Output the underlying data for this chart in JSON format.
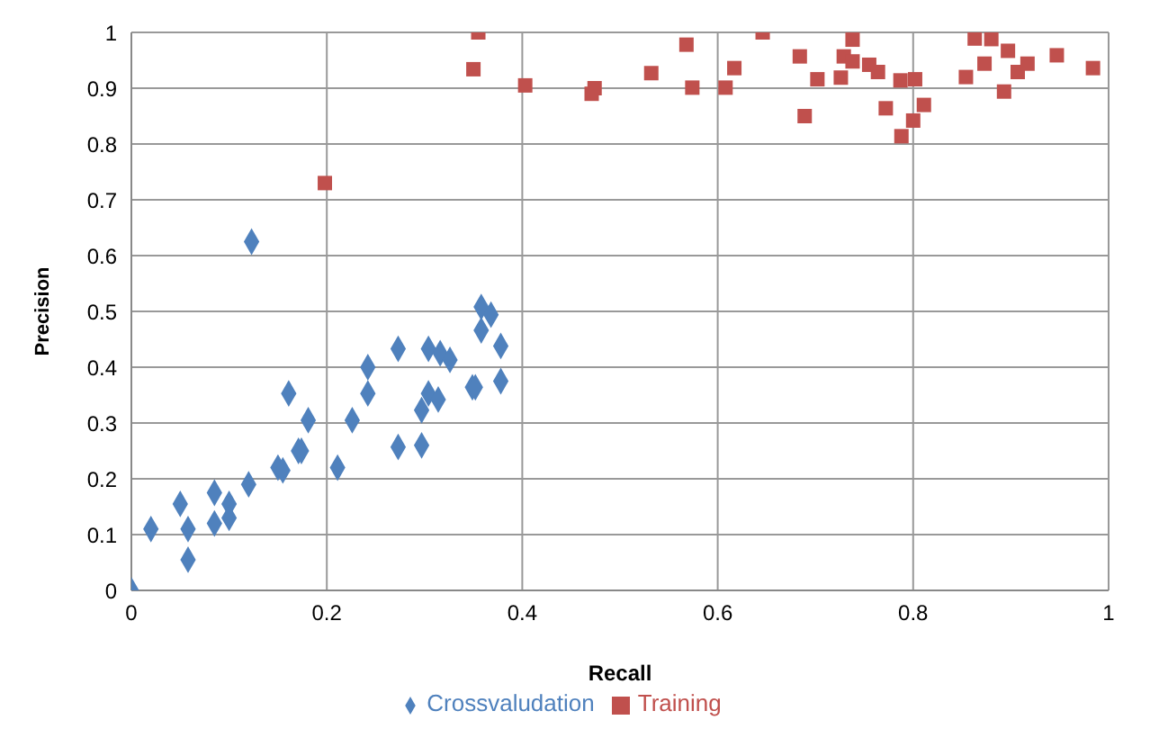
{
  "chart_data": {
    "type": "scatter",
    "xlabel": "Recall",
    "ylabel": "Precision",
    "xlim": [
      0,
      1
    ],
    "ylim": [
      0,
      1
    ],
    "xticks": [
      0,
      0.2,
      0.4,
      0.6,
      0.8,
      1
    ],
    "yticks": [
      0,
      0.1,
      0.2,
      0.3,
      0.4,
      0.5,
      0.6,
      0.7,
      0.8,
      0.9,
      1
    ],
    "grid": true,
    "legend": "bottom",
    "series": [
      {
        "name": "Crossvaludation",
        "color": "#4f81bd",
        "marker": "diamond",
        "x": [
          0,
          0.02,
          0.05,
          0.058,
          0.058,
          0.085,
          0.085,
          0.1,
          0.1,
          0.12,
          0.123,
          0.15,
          0.155,
          0.161,
          0.171,
          0.174,
          0.181,
          0.211,
          0.226,
          0.242,
          0.242,
          0.273,
          0.273,
          0.297,
          0.297,
          0.304,
          0.304,
          0.314,
          0.316,
          0.326,
          0.349,
          0.352,
          0.358,
          0.358,
          0.368,
          0.378,
          0.378
        ],
        "values": [
          0,
          0.11,
          0.155,
          0.11,
          0.055,
          0.175,
          0.12,
          0.155,
          0.13,
          0.19,
          0.625,
          0.22,
          0.215,
          0.353,
          0.25,
          0.25,
          0.305,
          0.22,
          0.305,
          0.4,
          0.353,
          0.433,
          0.257,
          0.323,
          0.26,
          0.433,
          0.353,
          0.342,
          0.425,
          0.413,
          0.364,
          0.364,
          0.508,
          0.466,
          0.494,
          0.438,
          0.375
        ]
      },
      {
        "name": "Training",
        "color": "#c0504d",
        "marker": "square",
        "x": [
          0.198,
          0.355,
          0.35,
          0.403,
          0.471,
          0.474,
          0.532,
          0.568,
          0.574,
          0.608,
          0.617,
          0.646,
          0.684,
          0.689,
          0.702,
          0.726,
          0.729,
          0.738,
          0.738,
          0.755,
          0.764,
          0.772,
          0.787,
          0.802,
          0.788,
          0.8,
          0.811,
          0.854,
          0.863,
          0.88,
          0.873,
          0.897,
          0.893,
          0.907,
          0.917,
          0.947,
          0.984
        ],
        "values": [
          0.73,
          1.0,
          0.934,
          0.905,
          0.89,
          0.9,
          0.927,
          0.978,
          0.901,
          0.901,
          0.936,
          1.0,
          0.957,
          0.85,
          0.916,
          0.919,
          0.957,
          0.987,
          0.948,
          0.942,
          0.929,
          0.864,
          0.914,
          0.916,
          0.814,
          0.842,
          0.87,
          0.92,
          0.989,
          0.988,
          0.944,
          0.967,
          0.894,
          0.929,
          0.944,
          0.959,
          0.936
        ]
      }
    ]
  }
}
